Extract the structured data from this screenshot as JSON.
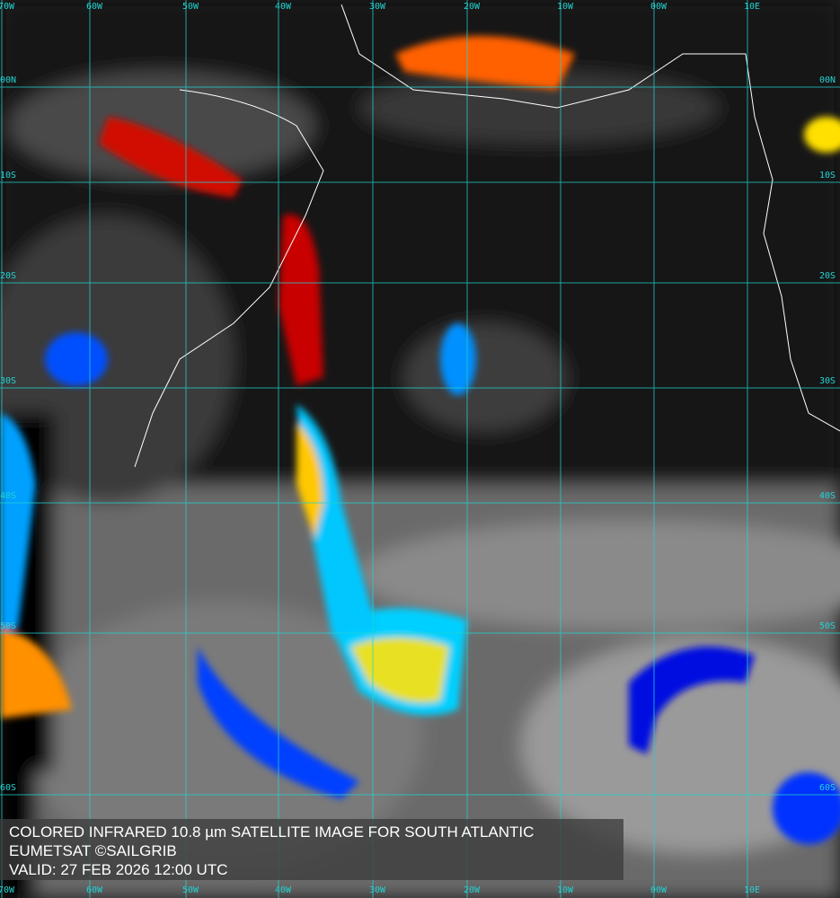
{
  "caption": {
    "title": "COLORED INFRARED 10.8 µm SATELLITE IMAGE FOR SOUTH ATLANTIC",
    "credit": "EUMETSAT ©SAILGRIB",
    "valid": "VALID:  27 FEB 2026 12:00 UTC"
  },
  "longitudes": [
    "70W",
    "60W",
    "50W",
    "40W",
    "30W",
    "20W",
    "10W",
    "00W",
    "10E"
  ],
  "latitudes": [
    "00N",
    "10S",
    "20S",
    "30S",
    "40S",
    "50S",
    "60S"
  ],
  "colors": {
    "grid": "#22d3d3",
    "coast": "#ffffff",
    "cold_top": "#b00000",
    "warm_cloud": "#0010ff"
  }
}
